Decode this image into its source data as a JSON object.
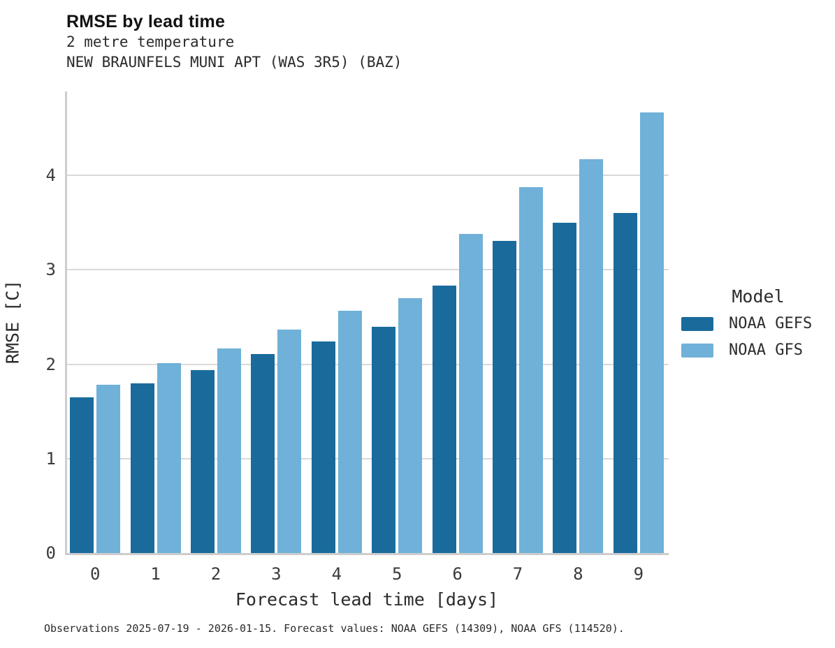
{
  "header": {
    "title": "RMSE by lead time",
    "subtitle1": "2 metre temperature",
    "subtitle2": "NEW BRAUNFELS MUNI APT (WAS 3R5) (BAZ)"
  },
  "chart_data": {
    "type": "bar",
    "title": "RMSE by lead time",
    "subtitle": "2 metre temperature — NEW BRAUNFELS MUNI APT (WAS 3R5) (BAZ)",
    "categories": [
      "0",
      "1",
      "2",
      "3",
      "4",
      "5",
      "6",
      "7",
      "8",
      "9"
    ],
    "series": [
      {
        "name": "NOAA GEFS",
        "color": "#1a6b9c",
        "values": [
          1.65,
          1.8,
          1.94,
          2.11,
          2.24,
          2.4,
          2.83,
          3.31,
          3.5,
          3.6
        ]
      },
      {
        "name": "NOAA GFS",
        "color": "#6fb1d8",
        "values": [
          1.78,
          2.01,
          2.17,
          2.37,
          2.57,
          2.7,
          3.38,
          3.88,
          4.17,
          4.67
        ]
      }
    ],
    "xlabel": "Forecast lead time [days]",
    "ylabel": "RMSE [C]",
    "ylim": [
      0,
      4.89
    ],
    "yticks": [
      0,
      1,
      2,
      3,
      4
    ],
    "grid": "horizontal",
    "legend_title": "Model",
    "legend_position": "right-of-plot"
  },
  "legend": {
    "title": "Model"
  },
  "colors": {
    "noaa_gefs": "#1a6b9c",
    "noaa_gfs": "#6fb1d8",
    "gridline": "#d9d9d9",
    "spine": "#cdcdcd"
  },
  "caption": "Observations 2025-07-19 - 2026-01-15. Forecast values: NOAA GEFS (14309), NOAA GFS (114520)."
}
